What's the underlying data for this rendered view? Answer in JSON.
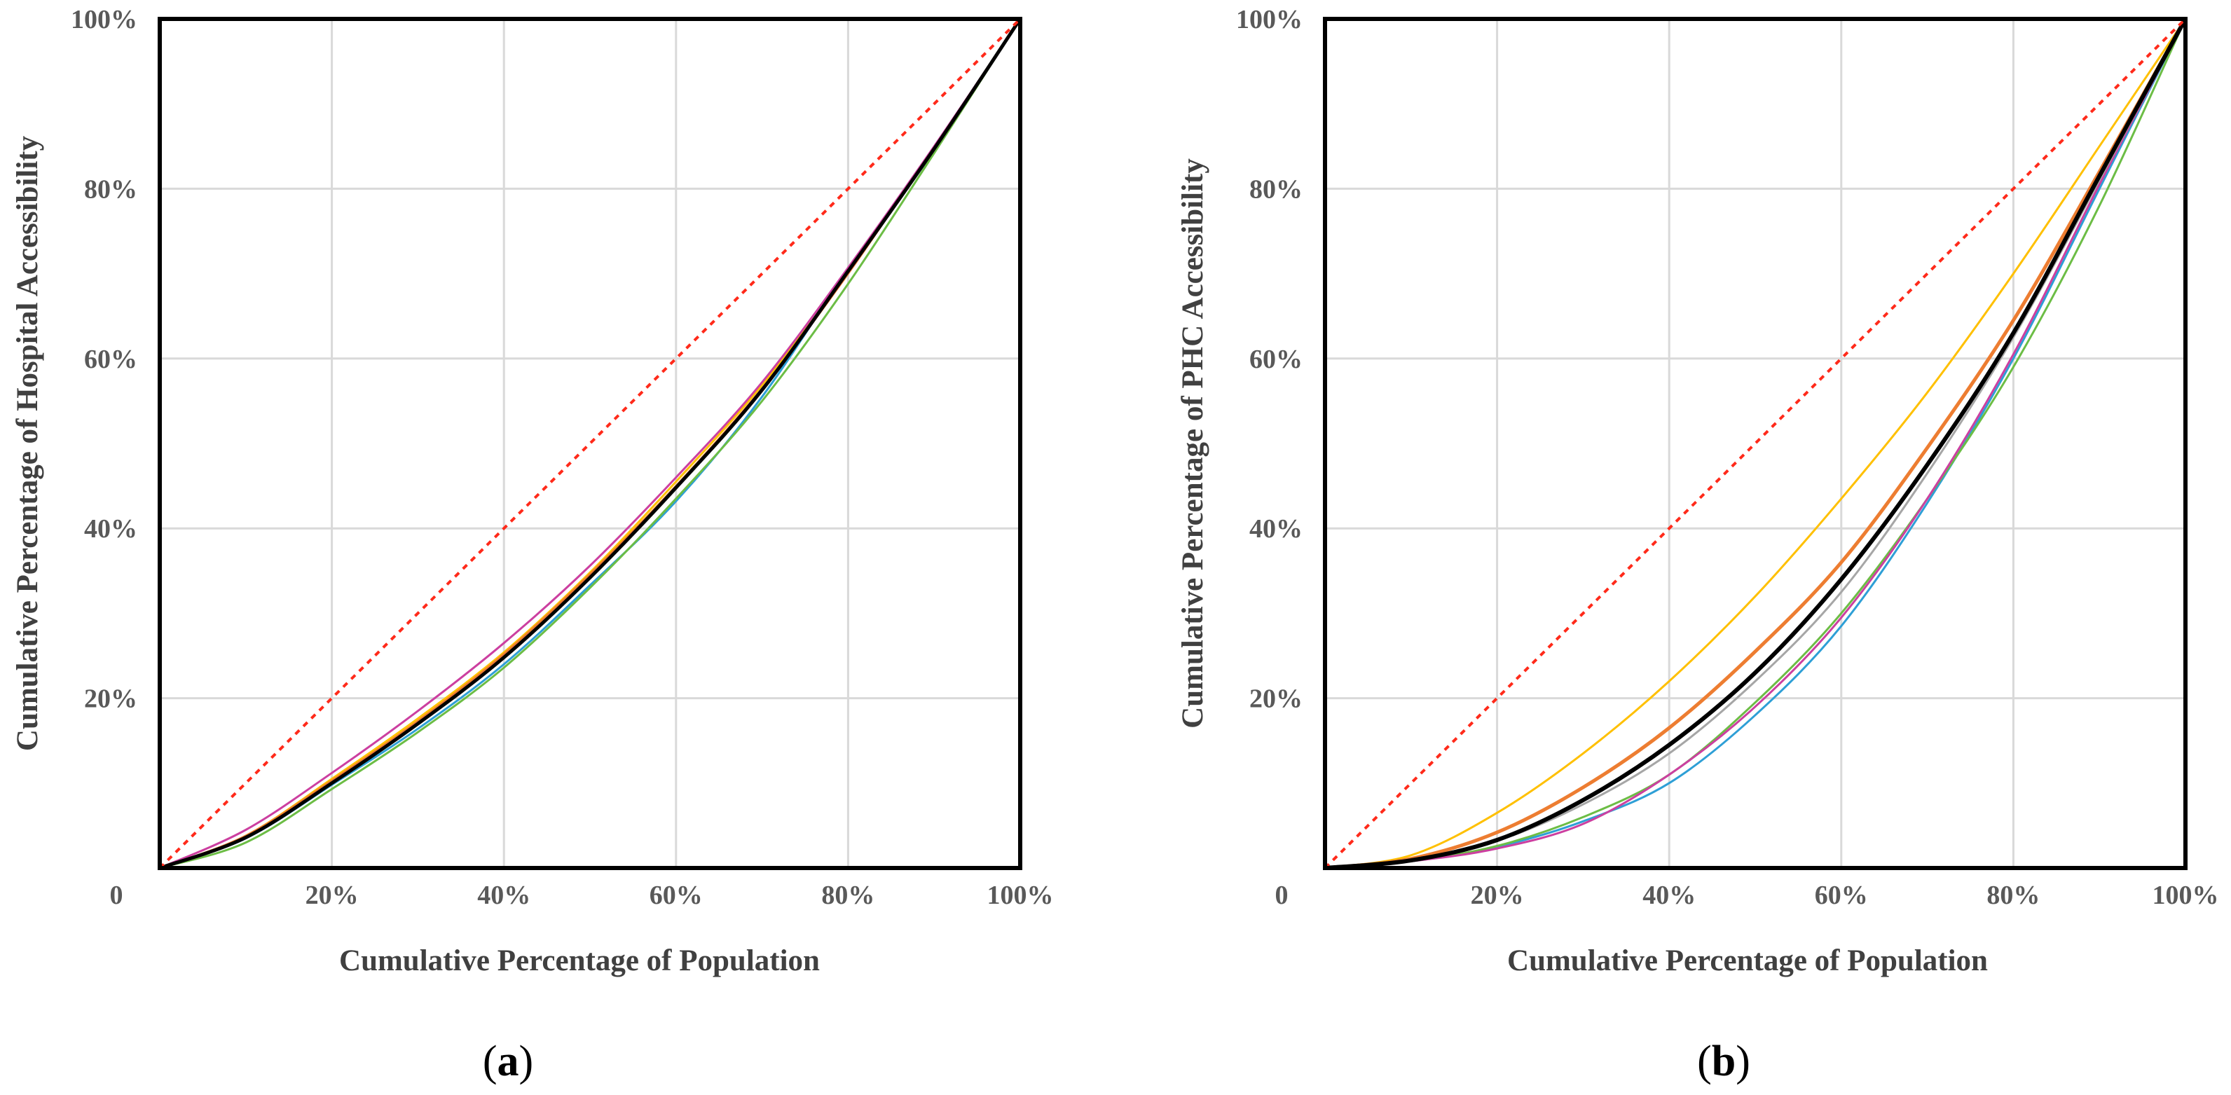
{
  "chart_data": [
    {
      "type": "line",
      "panel_label": "a",
      "xlabel": "Cumulative Percentage of Population",
      "ylabel": "Cumulative Percentage of  Hospital Accessibility",
      "xlim": [
        0,
        100
      ],
      "ylim": [
        0,
        100
      ],
      "x_ticks": [
        {
          "value": 0,
          "label": "0"
        },
        {
          "value": 20,
          "label": "20%"
        },
        {
          "value": 40,
          "label": "40%"
        },
        {
          "value": 60,
          "label": "60%"
        },
        {
          "value": 80,
          "label": "80%"
        },
        {
          "value": 100,
          "label": "100%"
        }
      ],
      "y_ticks": [
        {
          "value": 20,
          "label": "20%"
        },
        {
          "value": 40,
          "label": "40%"
        },
        {
          "value": 60,
          "label": "60%"
        },
        {
          "value": 80,
          "label": "80%"
        },
        {
          "value": 100,
          "label": "100%"
        }
      ],
      "grid": true,
      "x": [
        0,
        10,
        20,
        30,
        40,
        50,
        60,
        70,
        80,
        90,
        100
      ],
      "equality_line": {
        "color": "#ff2a1a",
        "style": "dotted",
        "x": [
          0,
          100
        ],
        "y": [
          0,
          100
        ]
      },
      "series": [
        {
          "color": "#2e9fd6",
          "width": 3,
          "values": [
            0,
            3.5,
            9.8,
            16.4,
            24.0,
            33.3,
            43.2,
            55.5,
            70.5,
            84.5,
            100
          ]
        },
        {
          "color": "#6cbd45",
          "width": 3,
          "values": [
            0,
            3.0,
            9.3,
            16.0,
            23.6,
            33.0,
            43.5,
            55.0,
            68.8,
            84.2,
            100
          ]
        },
        {
          "color": "#ffc000",
          "width": 3,
          "values": [
            0,
            3.8,
            10.5,
            17.6,
            25.4,
            34.8,
            45.5,
            56.9,
            70.2,
            84.7,
            100
          ]
        },
        {
          "color": "#ed7d31",
          "width": 3,
          "values": [
            0,
            3.8,
            10.3,
            17.3,
            25.2,
            34.6,
            45.0,
            56.5,
            70.0,
            84.9,
            100
          ]
        },
        {
          "color": "#cc3fa0",
          "width": 3,
          "values": [
            0,
            4.5,
            11.2,
            18.5,
            26.5,
            35.6,
            46.0,
            57.2,
            70.7,
            85.0,
            100
          ]
        },
        {
          "color": "#000000",
          "width": 5,
          "values": [
            0,
            3.6,
            10.0,
            17.0,
            24.8,
            34.2,
            44.8,
            56.3,
            70.3,
            84.7,
            100
          ]
        }
      ]
    },
    {
      "type": "line",
      "panel_label": "b",
      "xlabel": "Cumulative Percentage of Population",
      "ylabel": "Cumulative Percentage of  PHC Accessibility",
      "xlim": [
        0,
        100
      ],
      "ylim": [
        0,
        100
      ],
      "x_ticks": [
        {
          "value": 0,
          "label": "0"
        },
        {
          "value": 20,
          "label": "20%"
        },
        {
          "value": 40,
          "label": "40%"
        },
        {
          "value": 60,
          "label": "60%"
        },
        {
          "value": 80,
          "label": "80%"
        },
        {
          "value": 100,
          "label": "100%"
        }
      ],
      "y_ticks": [
        {
          "value": 20,
          "label": "20%"
        },
        {
          "value": 40,
          "label": "40%"
        },
        {
          "value": 60,
          "label": "60%"
        },
        {
          "value": 80,
          "label": "80%"
        },
        {
          "value": 100,
          "label": "100%"
        }
      ],
      "grid": true,
      "x": [
        0,
        10,
        20,
        30,
        40,
        50,
        60,
        70,
        80,
        90,
        100
      ],
      "equality_line": {
        "color": "#ff2a1a",
        "style": "dotted",
        "x": [
          0,
          100
        ],
        "y": [
          0,
          100
        ]
      },
      "series": [
        {
          "color": "#2e9fd6",
          "width": 3,
          "values": [
            0,
            0.8,
            2.5,
            5.5,
            10.0,
            18.0,
            28.5,
            43.0,
            60.0,
            80.0,
            100
          ]
        },
        {
          "color": "#6cbd45",
          "width": 3,
          "values": [
            0,
            0.8,
            2.6,
            6.0,
            11.0,
            19.5,
            30.0,
            43.5,
            59.0,
            78.0,
            100
          ]
        },
        {
          "color": "#ffc000",
          "width": 3,
          "values": [
            0,
            1.5,
            6.5,
            13.5,
            22.0,
            32.0,
            43.5,
            56.0,
            70.0,
            85.0,
            100
          ]
        },
        {
          "color": "#ed7d31",
          "width": 5,
          "values": [
            0,
            1.1,
            4.2,
            9.5,
            16.5,
            25.5,
            36.0,
            49.5,
            64.5,
            82.0,
            100
          ]
        },
        {
          "color": "#cc3fa0",
          "width": 3,
          "values": [
            0,
            0.8,
            2.3,
            5.2,
            11.0,
            19.0,
            29.5,
            43.5,
            60.5,
            80.5,
            100
          ]
        },
        {
          "color": "#a6a6a6",
          "width": 3,
          "values": [
            0,
            0.9,
            3.2,
            7.5,
            13.5,
            22.0,
            32.5,
            46.5,
            62.5,
            81.0,
            100
          ]
        },
        {
          "color": "#000000",
          "width": 6,
          "values": [
            0,
            0.9,
            3.3,
            8.0,
            14.5,
            23.0,
            34.0,
            47.5,
            63.0,
            81.5,
            100
          ]
        }
      ]
    }
  ]
}
